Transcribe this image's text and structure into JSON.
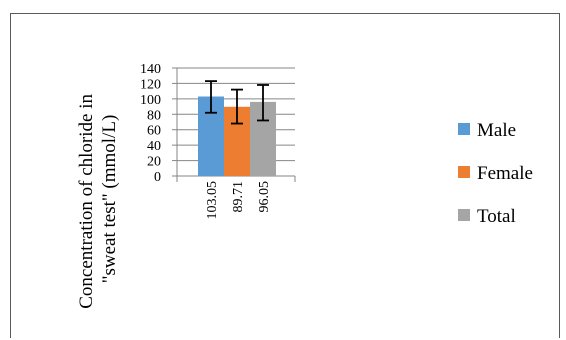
{
  "chart_data": {
    "type": "bar",
    "ylabel": "Concentration of chloride in \"sweat test\" (mmol/L)",
    "ylabel_lines": [
      "Concentration of chloride in",
      "\"sweat test\" (mmol/L)"
    ],
    "ylim": [
      0,
      140
    ],
    "yticks": [
      0,
      20,
      40,
      60,
      80,
      100,
      120,
      140
    ],
    "yticklabels": [
      "0",
      "20",
      "40",
      "60",
      "80",
      "100",
      "120",
      "140"
    ],
    "grid": true,
    "legend_position": "right",
    "series": [
      {
        "name": "Male",
        "value": 103.05,
        "label": "103.05",
        "error_low": 82,
        "error_high": 123,
        "color": "#5B9BD5"
      },
      {
        "name": "Female",
        "value": 89.71,
        "label": "89.71",
        "error_low": 68,
        "error_high": 112,
        "color": "#ED7D31"
      },
      {
        "name": "Total",
        "value": 96.05,
        "label": "96.05",
        "error_low": 72,
        "error_high": 118,
        "color": "#A5A5A5"
      }
    ]
  }
}
